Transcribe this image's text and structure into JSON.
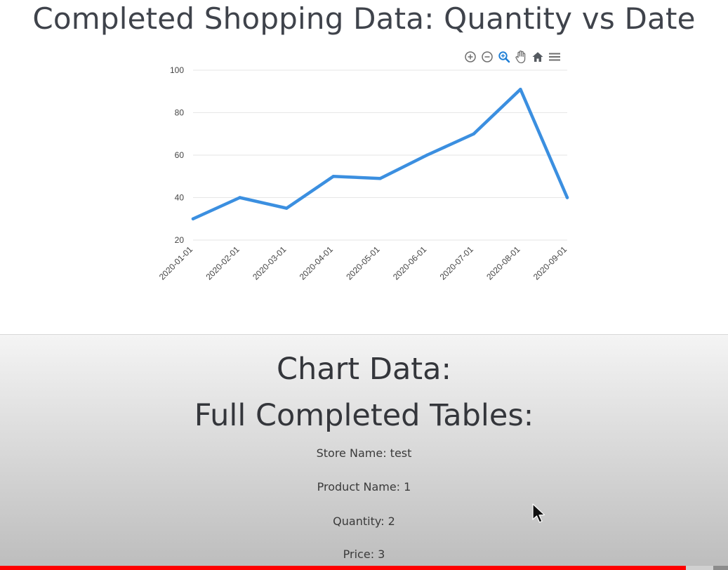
{
  "page": {
    "title": "Completed Shopping Data: Quantity vs Date"
  },
  "toolbar": {
    "icons": [
      "zoom-in-icon",
      "zoom-out-icon",
      "selection-zoom-icon",
      "pan-icon",
      "reset-home-icon",
      "menu-icon"
    ],
    "active_color": "#1f7fd6",
    "icon_color": "#6e6e6e"
  },
  "chart_data": {
    "type": "line",
    "title": "",
    "xlabel": "",
    "ylabel": "",
    "categories": [
      "2020-01-01",
      "2020-02-01",
      "2020-03-01",
      "2020-04-01",
      "2020-05-01",
      "2020-06-01",
      "2020-07-01",
      "2020-08-01",
      "2020-09-01"
    ],
    "series": [
      {
        "values": [
          30,
          40,
          35,
          50,
          49,
          60,
          70,
          91,
          40
        ],
        "color": "#3b8fe0"
      }
    ],
    "ylim": [
      20,
      100
    ],
    "yticks": [
      "20",
      "40",
      "60",
      "80",
      "100"
    ],
    "grid": true
  },
  "details": {
    "chart_data_heading": "Chart Data:",
    "tables_heading": "Full Completed Tables:",
    "store_name": "Store Name: test",
    "product_name": "Product Name: 1",
    "quantity": "Quantity: 2",
    "price": "Price: 3"
  },
  "video": {
    "progress": 0.942,
    "buffered": 0.98,
    "played_color": "#ff0000"
  }
}
